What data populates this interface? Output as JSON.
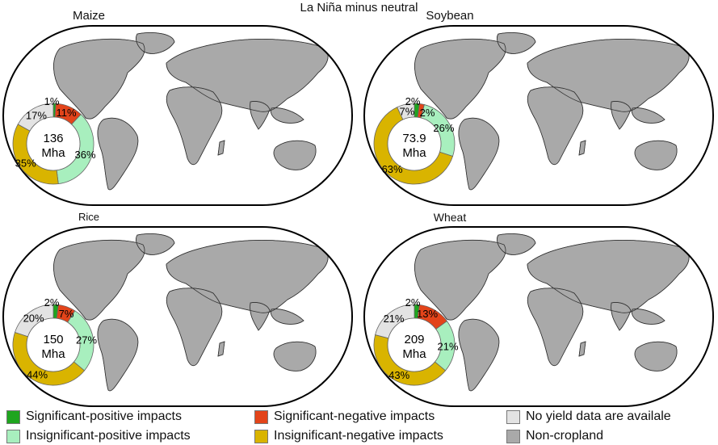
{
  "figure_title": "La Niña minus neutral",
  "center_unit": "Mha",
  "colors": {
    "sig_pos": "#1fa51f",
    "sig_neg": "#e3441a",
    "insig_pos": "#a8efbe",
    "insig_neg": "#d9b400",
    "no_data": "#e3e3e3",
    "non_cropland": "#a9a9a9",
    "ocean": "#ffffff",
    "outline": "#000000"
  },
  "panels": [
    {
      "name": "Maize",
      "area": "136",
      "segments": [
        {
          "category": "sig_pos",
          "percent": 1,
          "label": "1%"
        },
        {
          "category": "sig_neg",
          "percent": 11,
          "label": "11%"
        },
        {
          "category": "insig_pos",
          "percent": 36,
          "label": "36%"
        },
        {
          "category": "insig_neg",
          "percent": 35,
          "label": "35%"
        },
        {
          "category": "no_data",
          "percent": 17,
          "label": "17%"
        }
      ]
    },
    {
      "name": "Soybean",
      "area": "73.9",
      "segments": [
        {
          "category": "sig_pos",
          "percent": 2,
          "label": "2%"
        },
        {
          "category": "sig_neg",
          "percent": 2,
          "label": "2%"
        },
        {
          "category": "insig_pos",
          "percent": 26,
          "label": "26%"
        },
        {
          "category": "insig_neg",
          "percent": 63,
          "label": "63%"
        },
        {
          "category": "no_data",
          "percent": 7,
          "label": "7%"
        }
      ]
    },
    {
      "name": "Rice",
      "area": "150",
      "segments": [
        {
          "category": "sig_pos",
          "percent": 2,
          "label": "2%"
        },
        {
          "category": "sig_neg",
          "percent": 7,
          "label": "7%"
        },
        {
          "category": "insig_pos",
          "percent": 27,
          "label": "27%"
        },
        {
          "category": "insig_neg",
          "percent": 44,
          "label": "44%"
        },
        {
          "category": "no_data",
          "percent": 20,
          "label": "20%"
        }
      ]
    },
    {
      "name": "Wheat",
      "area": "209",
      "segments": [
        {
          "category": "sig_pos",
          "percent": 2,
          "label": "2%"
        },
        {
          "category": "sig_neg",
          "percent": 13,
          "label": "13%"
        },
        {
          "category": "insig_pos",
          "percent": 21,
          "label": "21%"
        },
        {
          "category": "insig_neg",
          "percent": 43,
          "label": "43%"
        },
        {
          "category": "no_data",
          "percent": 21,
          "label": "21%"
        }
      ]
    }
  ],
  "legend": [
    {
      "category": "sig_pos",
      "label": "Significant-positive impacts"
    },
    {
      "category": "insig_pos",
      "label": "Insignificant-positive impacts"
    },
    {
      "category": "sig_neg",
      "label": "Significant-negative impacts"
    },
    {
      "category": "insig_neg",
      "label": "Insignificant-negative impacts"
    },
    {
      "category": "no_data",
      "label": "No yield data are availale"
    },
    {
      "category": "non_cropland",
      "label": "Non-cropland"
    }
  ]
}
